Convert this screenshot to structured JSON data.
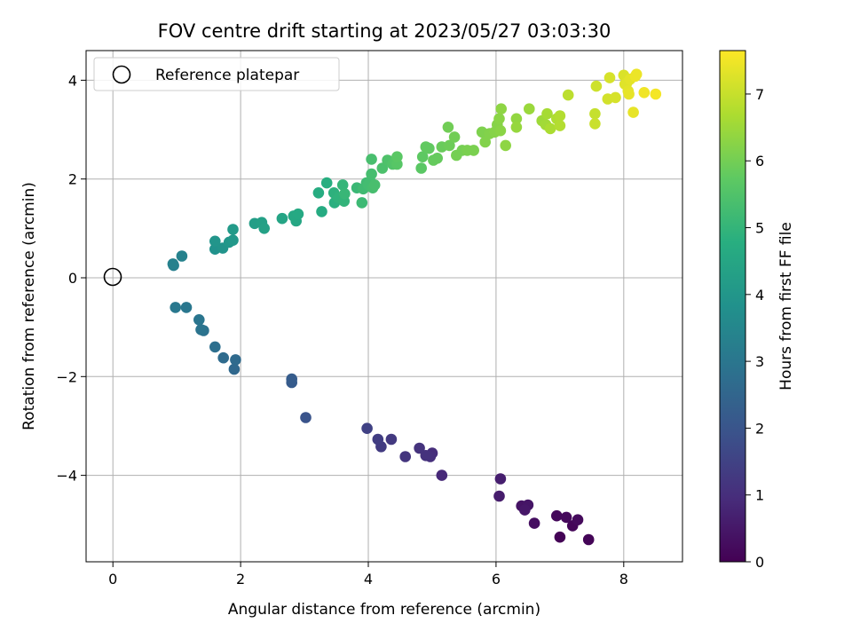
{
  "chart_data": {
    "type": "scatter",
    "title": "FOV centre drift starting at 2023/05/27 03:03:30",
    "xlabel": "Angular distance from reference (arcmin)",
    "ylabel": "Rotation from reference (arcmin)",
    "xlim": [
      -0.42,
      8.92
    ],
    "ylim": [
      -5.75,
      4.6
    ],
    "xticks": [
      0,
      2,
      4,
      6,
      8
    ],
    "yticks": [
      -4,
      -2,
      0,
      2,
      4
    ],
    "grid": true,
    "legend": {
      "position": "top-left",
      "entries": [
        "Reference platepar"
      ]
    },
    "reference_point": {
      "x": 0,
      "y": 0
    },
    "colorbar": {
      "label": "Hours from first FF file",
      "range": [
        0,
        7.65
      ],
      "ticks": [
        0,
        1,
        2,
        3,
        4,
        5,
        6,
        7
      ],
      "colormap": "viridis"
    },
    "series": [
      {
        "points": [
          [
            7.0,
            -5.25,
            0.05
          ],
          [
            7.45,
            -5.3,
            0.08
          ],
          [
            7.2,
            -5.02,
            0.1
          ],
          [
            6.95,
            -4.82,
            0.15
          ],
          [
            7.1,
            -4.85,
            0.18
          ],
          [
            7.28,
            -4.9,
            0.2
          ],
          [
            6.6,
            -4.97,
            0.3
          ],
          [
            6.4,
            -4.62,
            0.4
          ],
          [
            6.5,
            -4.6,
            0.45
          ],
          [
            6.45,
            -4.7,
            0.5
          ],
          [
            6.05,
            -4.42,
            0.6
          ],
          [
            6.07,
            -4.07,
            0.65
          ],
          [
            5.15,
            -4.0,
            0.9
          ],
          [
            5.0,
            -3.55,
            1.0
          ],
          [
            4.97,
            -3.62,
            1.05
          ],
          [
            4.9,
            -3.6,
            1.1
          ],
          [
            4.8,
            -3.45,
            1.15
          ],
          [
            4.58,
            -3.62,
            1.2
          ],
          [
            4.36,
            -3.27,
            1.3
          ],
          [
            4.2,
            -3.42,
            1.35
          ],
          [
            4.15,
            -3.27,
            1.4
          ],
          [
            3.98,
            -3.05,
            1.5
          ],
          [
            3.02,
            -2.83,
            2.0
          ],
          [
            2.8,
            -2.12,
            2.2
          ],
          [
            2.8,
            -2.05,
            2.25
          ],
          [
            1.9,
            -1.85,
            2.6
          ],
          [
            1.92,
            -1.66,
            2.65
          ],
          [
            1.73,
            -1.62,
            2.7
          ],
          [
            1.6,
            -1.4,
            2.8
          ],
          [
            1.42,
            -1.07,
            2.9
          ],
          [
            1.38,
            -1.05,
            2.95
          ],
          [
            1.35,
            -0.85,
            3.0
          ],
          [
            1.15,
            -0.6,
            3.05
          ],
          [
            0.98,
            -0.6,
            3.1
          ],
          [
            0.95,
            0.25,
            3.3
          ],
          [
            0.94,
            0.28,
            3.35
          ],
          [
            1.08,
            0.44,
            3.4
          ],
          [
            1.6,
            0.58,
            3.9
          ],
          [
            1.72,
            0.6,
            3.95
          ],
          [
            1.6,
            0.74,
            4.0
          ],
          [
            1.82,
            0.72,
            4.05
          ],
          [
            1.88,
            0.76,
            4.1
          ],
          [
            1.88,
            0.98,
            4.15
          ],
          [
            2.22,
            1.1,
            4.3
          ],
          [
            2.33,
            1.12,
            4.35
          ],
          [
            2.37,
            1.0,
            4.4
          ],
          [
            2.65,
            1.2,
            4.5
          ],
          [
            2.87,
            1.15,
            4.55
          ],
          [
            2.83,
            1.25,
            4.6
          ],
          [
            2.9,
            1.29,
            4.65
          ],
          [
            3.27,
            1.34,
            4.7
          ],
          [
            3.22,
            1.72,
            4.75
          ],
          [
            3.35,
            1.92,
            4.8
          ],
          [
            3.47,
            1.52,
            4.85
          ],
          [
            3.46,
            1.72,
            4.9
          ],
          [
            3.53,
            1.62,
            4.95
          ],
          [
            3.62,
            1.55,
            5.0
          ],
          [
            3.6,
            1.88,
            5.05
          ],
          [
            3.63,
            1.7,
            5.1
          ],
          [
            3.82,
            1.82,
            5.15
          ],
          [
            3.9,
            1.52,
            5.2
          ],
          [
            3.92,
            1.8,
            5.25
          ],
          [
            3.97,
            1.92,
            5.25
          ],
          [
            4.0,
            1.88,
            5.3
          ],
          [
            4.03,
            1.95,
            5.3
          ],
          [
            4.07,
            1.82,
            5.35
          ],
          [
            4.05,
            2.1,
            5.35
          ],
          [
            4.1,
            1.88,
            5.4
          ],
          [
            4.05,
            2.4,
            5.4
          ],
          [
            4.22,
            2.22,
            5.45
          ],
          [
            4.3,
            2.38,
            5.5
          ],
          [
            4.38,
            2.3,
            5.55
          ],
          [
            4.42,
            2.35,
            5.6
          ],
          [
            4.45,
            2.3,
            5.65
          ],
          [
            4.45,
            2.45,
            5.7
          ],
          [
            4.83,
            2.22,
            5.7
          ],
          [
            4.85,
            2.45,
            5.75
          ],
          [
            4.9,
            2.65,
            5.8
          ],
          [
            4.95,
            2.62,
            5.8
          ],
          [
            5.02,
            2.38,
            5.85
          ],
          [
            5.08,
            2.42,
            5.85
          ],
          [
            5.15,
            2.65,
            5.9
          ],
          [
            5.27,
            2.68,
            5.95
          ],
          [
            5.25,
            3.05,
            6.0
          ],
          [
            5.35,
            2.85,
            6.0
          ],
          [
            5.38,
            2.48,
            6.05
          ],
          [
            5.47,
            2.58,
            6.05
          ],
          [
            5.55,
            2.58,
            6.1
          ],
          [
            5.65,
            2.58,
            6.1
          ],
          [
            5.78,
            2.95,
            6.15
          ],
          [
            5.83,
            2.75,
            6.2
          ],
          [
            5.9,
            2.92,
            6.2
          ],
          [
            5.98,
            2.95,
            6.25
          ],
          [
            6.02,
            3.1,
            6.25
          ],
          [
            6.05,
            3.22,
            6.3
          ],
          [
            6.07,
            2.98,
            6.3
          ],
          [
            6.08,
            3.42,
            6.35
          ],
          [
            6.15,
            2.68,
            6.35
          ],
          [
            6.32,
            3.22,
            6.4
          ],
          [
            6.32,
            3.05,
            6.45
          ],
          [
            6.52,
            3.42,
            6.5
          ],
          [
            6.72,
            3.18,
            6.55
          ],
          [
            6.78,
            3.1,
            6.6
          ],
          [
            6.8,
            3.32,
            6.65
          ],
          [
            6.85,
            3.02,
            6.7
          ],
          [
            6.95,
            3.22,
            6.75
          ],
          [
            7.0,
            3.28,
            6.8
          ],
          [
            7.0,
            3.08,
            6.8
          ],
          [
            7.13,
            3.7,
            6.9
          ],
          [
            7.55,
            3.32,
            7.0
          ],
          [
            7.55,
            3.12,
            7.05
          ],
          [
            7.57,
            3.88,
            7.1
          ],
          [
            7.75,
            3.62,
            7.15
          ],
          [
            7.78,
            4.05,
            7.2
          ],
          [
            7.87,
            3.65,
            7.2
          ],
          [
            8.0,
            4.1,
            7.25
          ],
          [
            8.02,
            3.92,
            7.3
          ],
          [
            8.05,
            3.95,
            7.3
          ],
          [
            8.1,
            4.02,
            7.35
          ],
          [
            8.07,
            3.78,
            7.35
          ],
          [
            8.08,
            3.72,
            7.4
          ],
          [
            8.15,
            3.35,
            7.4
          ],
          [
            8.18,
            4.08,
            7.45
          ],
          [
            8.2,
            4.12,
            7.45
          ],
          [
            8.32,
            3.75,
            7.5
          ],
          [
            8.5,
            3.72,
            7.55
          ]
        ]
      }
    ]
  }
}
